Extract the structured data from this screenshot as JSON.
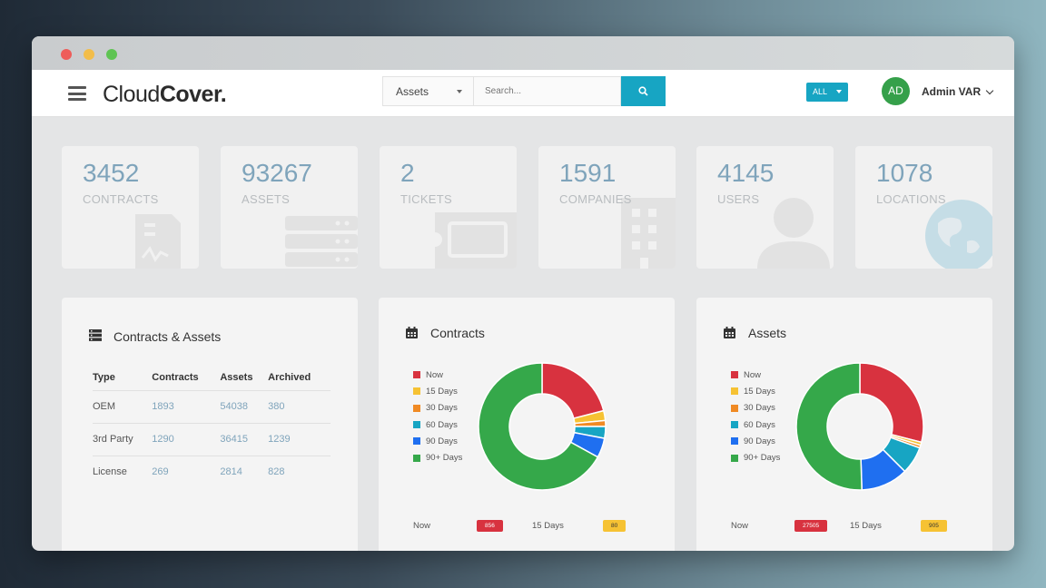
{
  "window": {
    "controls": [
      "close",
      "minimize",
      "maximize"
    ]
  },
  "header": {
    "logo_part1": "Cloud",
    "logo_part2": "Cover.",
    "search_category": "Assets",
    "search_placeholder": "Search...",
    "filter_label": "ALL",
    "avatar_initials": "AD",
    "user_name": "Admin VAR"
  },
  "stats": [
    {
      "value": "3452",
      "label": "CONTRACTS",
      "icon": "contract-icon"
    },
    {
      "value": "93267",
      "label": "ASSETS",
      "icon": "server-icon"
    },
    {
      "value": "2",
      "label": "TICKETS",
      "icon": "ticket-icon"
    },
    {
      "value": "1591",
      "label": "COMPANIES",
      "icon": "building-icon"
    },
    {
      "value": "4145",
      "label": "USERS",
      "icon": "user-icon"
    },
    {
      "value": "1078",
      "label": "LOCATIONS",
      "icon": "globe-icon"
    }
  ],
  "contracts_assets": {
    "title": "Contracts & Assets",
    "headers": [
      "Type",
      "Contracts",
      "Assets",
      "Archived"
    ],
    "rows": [
      [
        "OEM",
        "1893",
        "54038",
        "380"
      ],
      [
        "3rd Party",
        "1290",
        "36415",
        "1239"
      ],
      [
        "License",
        "269",
        "2814",
        "828"
      ]
    ]
  },
  "legend_labels": [
    "Now",
    "15 Days",
    "30 Days",
    "60 Days",
    "90 Days",
    "90+ Days"
  ],
  "legend_colors": [
    "#d8323f",
    "#f6c233",
    "#f08a24",
    "#17a5c3",
    "#1f6ff0",
    "#35a84a"
  ],
  "contracts_panel": {
    "title": "Contracts",
    "bottom": {
      "now_label": "Now",
      "now_value": "856",
      "days15_label": "15 Days",
      "days15_value": "80"
    }
  },
  "assets_panel": {
    "title": "Assets",
    "bottom": {
      "now_label": "Now",
      "now_value": "27505",
      "days15_label": "15 Days",
      "days15_value": "905"
    }
  },
  "chart_data": [
    {
      "type": "pie",
      "title": "Contracts",
      "categories": [
        "Now",
        "15 Days",
        "30 Days",
        "60 Days",
        "90 Days",
        "90+ Days"
      ],
      "values": [
        21,
        2.5,
        1.5,
        3,
        5,
        67
      ],
      "colors": [
        "#d8323f",
        "#f6c233",
        "#f08a24",
        "#17a5c3",
        "#1f6ff0",
        "#35a84a"
      ]
    },
    {
      "type": "pie",
      "title": "Assets",
      "categories": [
        "Now",
        "15 Days",
        "30 Days",
        "60 Days",
        "90 Days",
        "90+ Days"
      ],
      "values": [
        29,
        0.8,
        0.7,
        7,
        12,
        50.5
      ],
      "colors": [
        "#d8323f",
        "#f6c233",
        "#f08a24",
        "#17a5c3",
        "#1f6ff0",
        "#35a84a"
      ]
    }
  ]
}
